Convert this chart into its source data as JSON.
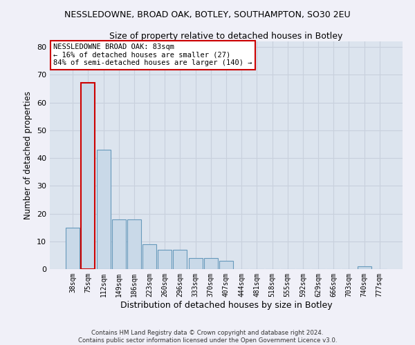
{
  "title": "NESSLEDOWNE, BROAD OAK, BOTLEY, SOUTHAMPTON, SO30 2EU",
  "subtitle": "Size of property relative to detached houses in Botley",
  "xlabel": "Distribution of detached houses by size in Botley",
  "ylabel": "Number of detached properties",
  "bar_values": [
    15,
    67,
    43,
    18,
    18,
    9,
    7,
    7,
    4,
    4,
    3,
    0,
    0,
    0,
    0,
    0,
    0,
    0,
    0,
    1,
    0
  ],
  "bar_labels": [
    "38sqm",
    "75sqm",
    "112sqm",
    "149sqm",
    "186sqm",
    "223sqm",
    "260sqm",
    "296sqm",
    "333sqm",
    "370sqm",
    "407sqm",
    "444sqm",
    "481sqm",
    "518sqm",
    "555sqm",
    "592sqm",
    "629sqm",
    "666sqm",
    "703sqm",
    "740sqm",
    "777sqm"
  ],
  "bar_color": "#c9d9e8",
  "bar_edge_color": "#6699bb",
  "highlight_bar_index": 1,
  "highlight_bar_edge_color": "#cc0000",
  "annotation_text": "NESSLEDOWNE BROAD OAK: 83sqm\n← 16% of detached houses are smaller (27)\n84% of semi-detached houses are larger (140) →",
  "annotation_box_color": "#ffffff",
  "annotation_box_edge_color": "#cc0000",
  "ylim": [
    0,
    82
  ],
  "yticks": [
    0,
    10,
    20,
    30,
    40,
    50,
    60,
    70,
    80
  ],
  "grid_color": "#c8d0dc",
  "bg_color": "#dce4ee",
  "fig_color": "#f0f0f8",
  "footer_line1": "Contains HM Land Registry data © Crown copyright and database right 2024.",
  "footer_line2": "Contains public sector information licensed under the Open Government Licence v3.0."
}
